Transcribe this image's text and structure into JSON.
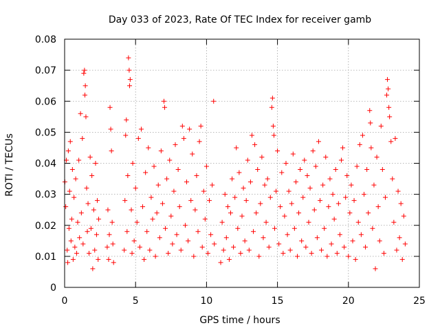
{
  "chart_data": {
    "type": "scatter",
    "title": "Day 033 of 2023, Rate Of TEC Index for receiver gamb",
    "xlabel": "GPS time / hours",
    "ylabel": "ROTI / TECUs",
    "xlim": [
      0,
      25
    ],
    "ylim": [
      0,
      0.08
    ],
    "xticks": [
      0,
      5,
      10,
      15,
      20,
      25
    ],
    "xtick_labels": [
      "0",
      "5",
      "10",
      "15",
      "20",
      "25"
    ],
    "yticks": [
      0,
      0.01,
      0.02,
      0.03,
      0.04,
      0.05,
      0.06,
      0.07,
      0.08
    ],
    "ytick_labels": [
      "0",
      "0.01",
      "0.02",
      "0.03",
      "0.04",
      "0.05",
      "0.06",
      "0.07",
      "0.08"
    ],
    "grid": true,
    "marker": "+",
    "color": "#ff0000",
    "series": [
      {
        "name": "ROTI",
        "points": [
          [
            0.02,
            0.034
          ],
          [
            0.08,
            0.026
          ],
          [
            0.12,
            0.041
          ],
          [
            0.18,
            0.012
          ],
          [
            0.22,
            0.008
          ],
          [
            0.26,
            0.044
          ],
          [
            0.31,
            0.019
          ],
          [
            0.35,
            0.031
          ],
          [
            0.4,
            0.047
          ],
          [
            0.45,
            0.015
          ],
          [
            0.5,
            0.022
          ],
          [
            0.55,
            0.038
          ],
          [
            0.6,
            0.009
          ],
          [
            0.66,
            0.029
          ],
          [
            0.72,
            0.013
          ],
          [
            0.78,
            0.035
          ],
          [
            0.85,
            0.011
          ],
          [
            0.92,
            0.021
          ],
          [
            1.0,
            0.041
          ],
          [
            1.05,
            0.016
          ],
          [
            1.12,
            0.056
          ],
          [
            1.18,
            0.024
          ],
          [
            1.25,
            0.048
          ],
          [
            1.3,
            0.014
          ],
          [
            1.35,
            0.069
          ],
          [
            1.4,
            0.07
          ],
          [
            1.43,
            0.062
          ],
          [
            1.46,
            0.065
          ],
          [
            1.5,
            0.055
          ],
          [
            1.55,
            0.032
          ],
          [
            1.6,
            0.018
          ],
          [
            1.65,
            0.027
          ],
          [
            1.72,
            0.011
          ],
          [
            1.8,
            0.042
          ],
          [
            1.86,
            0.019
          ],
          [
            1.92,
            0.036
          ],
          [
            1.98,
            0.006
          ],
          [
            2.05,
            0.025
          ],
          [
            2.12,
            0.012
          ],
          [
            2.18,
            0.04
          ],
          [
            2.25,
            0.017
          ],
          [
            2.3,
            0.028
          ],
          [
            2.36,
            0.009
          ],
          [
            2.4,
            0.022
          ],
          [
            3.0,
            0.013
          ],
          [
            3.05,
            0.025
          ],
          [
            3.1,
            0.009
          ],
          [
            3.15,
            0.017
          ],
          [
            3.2,
            0.058
          ],
          [
            3.25,
            0.051
          ],
          [
            3.3,
            0.044
          ],
          [
            3.35,
            0.021
          ],
          [
            3.4,
            0.014
          ],
          [
            3.45,
            0.008
          ],
          [
            4.2,
            0.012
          ],
          [
            4.25,
            0.028
          ],
          [
            4.3,
            0.049
          ],
          [
            4.35,
            0.054
          ],
          [
            4.4,
            0.018
          ],
          [
            4.45,
            0.036
          ],
          [
            4.5,
            0.074
          ],
          [
            4.55,
            0.07
          ],
          [
            4.58,
            0.065
          ],
          [
            4.62,
            0.067
          ],
          [
            4.7,
            0.025
          ],
          [
            4.75,
            0.011
          ],
          [
            4.8,
            0.04
          ],
          [
            4.9,
            0.015
          ],
          [
            5.0,
            0.032
          ],
          [
            5.1,
            0.021
          ],
          [
            5.2,
            0.048
          ],
          [
            5.3,
            0.013
          ],
          [
            5.4,
            0.051
          ],
          [
            5.5,
            0.026
          ],
          [
            5.6,
            0.009
          ],
          [
            5.7,
            0.037
          ],
          [
            5.8,
            0.018
          ],
          [
            5.9,
            0.045
          ],
          [
            6.0,
            0.012
          ],
          [
            6.1,
            0.029
          ],
          [
            6.2,
            0.022
          ],
          [
            6.3,
            0.039
          ],
          [
            6.4,
            0.01
          ],
          [
            6.5,
            0.024
          ],
          [
            6.6,
            0.033
          ],
          [
            6.7,
            0.016
          ],
          [
            6.8,
            0.044
          ],
          [
            6.9,
            0.027
          ],
          [
            7.0,
            0.06
          ],
          [
            7.05,
            0.058
          ],
          [
            7.1,
            0.019
          ],
          [
            7.2,
            0.035
          ],
          [
            7.3,
            0.011
          ],
          [
            7.4,
            0.041
          ],
          [
            7.5,
            0.023
          ],
          [
            7.6,
            0.014
          ],
          [
            7.7,
            0.031
          ],
          [
            7.8,
            0.046
          ],
          [
            7.9,
            0.017
          ],
          [
            8.0,
            0.038
          ],
          [
            8.1,
            0.026
          ],
          [
            8.2,
            0.012
          ],
          [
            8.3,
            0.052
          ],
          [
            8.4,
            0.048
          ],
          [
            8.5,
            0.02
          ],
          [
            8.6,
            0.034
          ],
          [
            8.7,
            0.015
          ],
          [
            8.8,
            0.051
          ],
          [
            8.9,
            0.028
          ],
          [
            9.0,
            0.043
          ],
          [
            9.1,
            0.01
          ],
          [
            9.2,
            0.025
          ],
          [
            9.3,
            0.036
          ],
          [
            9.4,
            0.018
          ],
          [
            9.5,
            0.047
          ],
          [
            9.6,
            0.052
          ],
          [
            9.7,
            0.013
          ],
          [
            9.8,
            0.031
          ],
          [
            9.9,
            0.022
          ],
          [
            10.0,
            0.039
          ],
          [
            10.1,
            0.011
          ],
          [
            10.2,
            0.028
          ],
          [
            10.3,
            0.017
          ],
          [
            10.4,
            0.033
          ],
          [
            10.5,
            0.06
          ],
          [
            10.55,
            0.014
          ],
          [
            11.0,
            0.008
          ],
          [
            11.1,
            0.021
          ],
          [
            11.2,
            0.012
          ],
          [
            11.3,
            0.03
          ],
          [
            11.4,
            0.016
          ],
          [
            11.5,
            0.026
          ],
          [
            11.6,
            0.009
          ],
          [
            11.7,
            0.024
          ],
          [
            11.8,
            0.035
          ],
          [
            11.9,
            0.013
          ],
          [
            12.0,
            0.029
          ],
          [
            12.1,
            0.045
          ],
          [
            12.2,
            0.019
          ],
          [
            12.3,
            0.037
          ],
          [
            12.4,
            0.011
          ],
          [
            12.5,
            0.023
          ],
          [
            12.6,
            0.032
          ],
          [
            12.7,
            0.015
          ],
          [
            12.8,
            0.028
          ],
          [
            12.9,
            0.041
          ],
          [
            13.0,
            0.012
          ],
          [
            13.1,
            0.034
          ],
          [
            13.2,
            0.049
          ],
          [
            13.3,
            0.018
          ],
          [
            13.4,
            0.046
          ],
          [
            13.5,
            0.024
          ],
          [
            13.6,
            0.038
          ],
          [
            13.7,
            0.01
          ],
          [
            13.8,
            0.027
          ],
          [
            13.9,
            0.042
          ],
          [
            14.0,
            0.016
          ],
          [
            14.1,
            0.033
          ],
          [
            14.2,
            0.021
          ],
          [
            14.3,
            0.035
          ],
          [
            14.4,
            0.013
          ],
          [
            14.5,
            0.029
          ],
          [
            14.6,
            0.058
          ],
          [
            14.65,
            0.061
          ],
          [
            14.7,
            0.052
          ],
          [
            14.75,
            0.049
          ],
          [
            14.8,
            0.019
          ],
          [
            14.9,
            0.031
          ],
          [
            15.0,
            0.044
          ],
          [
            15.1,
            0.014
          ],
          [
            15.2,
            0.026
          ],
          [
            15.3,
            0.037
          ],
          [
            15.4,
            0.011
          ],
          [
            15.5,
            0.023
          ],
          [
            15.6,
            0.04
          ],
          [
            15.7,
            0.017
          ],
          [
            15.8,
            0.031
          ],
          [
            15.9,
            0.012
          ],
          [
            16.0,
            0.027
          ],
          [
            16.1,
            0.043
          ],
          [
            16.2,
            0.019
          ],
          [
            16.3,
            0.034
          ],
          [
            16.4,
            0.01
          ],
          [
            16.5,
            0.024
          ],
          [
            16.6,
            0.038
          ],
          [
            16.7,
            0.015
          ],
          [
            16.8,
            0.029
          ],
          [
            16.9,
            0.041
          ],
          [
            17.0,
            0.013
          ],
          [
            17.1,
            0.036
          ],
          [
            17.2,
            0.021
          ],
          [
            17.3,
            0.032
          ],
          [
            17.4,
            0.011
          ],
          [
            17.5,
            0.044
          ],
          [
            17.6,
            0.025
          ],
          [
            17.7,
            0.039
          ],
          [
            17.8,
            0.016
          ],
          [
            17.9,
            0.047
          ],
          [
            18.0,
            0.028
          ],
          [
            18.1,
            0.012
          ],
          [
            18.2,
            0.033
          ],
          [
            18.3,
            0.019
          ],
          [
            18.4,
            0.042
          ],
          [
            18.5,
            0.01
          ],
          [
            18.6,
            0.026
          ],
          [
            18.7,
            0.035
          ],
          [
            18.8,
            0.014
          ],
          [
            18.9,
            0.03
          ],
          [
            19.0,
            0.022
          ],
          [
            19.1,
            0.038
          ],
          [
            19.2,
            0.011
          ],
          [
            19.3,
            0.027
          ],
          [
            19.4,
            0.017
          ],
          [
            19.5,
            0.041
          ],
          [
            19.6,
            0.045
          ],
          [
            19.7,
            0.013
          ],
          [
            19.8,
            0.029
          ],
          [
            19.9,
            0.036
          ],
          [
            20.0,
            0.01
          ],
          [
            20.1,
            0.024
          ],
          [
            20.2,
            0.033
          ],
          [
            20.3,
            0.015
          ],
          [
            20.4,
            0.028
          ],
          [
            20.5,
            0.009
          ],
          [
            20.6,
            0.039
          ],
          [
            20.7,
            0.021
          ],
          [
            20.8,
            0.046
          ],
          [
            20.9,
            0.017
          ],
          [
            21.0,
            0.049
          ],
          [
            21.1,
            0.03
          ],
          [
            21.2,
            0.013
          ],
          [
            21.3,
            0.038
          ],
          [
            21.4,
            0.024
          ],
          [
            21.5,
            0.057
          ],
          [
            21.55,
            0.053
          ],
          [
            21.6,
            0.045
          ],
          [
            21.7,
            0.019
          ],
          [
            21.8,
            0.033
          ],
          [
            21.9,
            0.006
          ],
          [
            22.0,
            0.042
          ],
          [
            22.1,
            0.026
          ],
          [
            22.2,
            0.015
          ],
          [
            22.3,
            0.052
          ],
          [
            22.4,
            0.038
          ],
          [
            22.5,
            0.011
          ],
          [
            22.6,
            0.029
          ],
          [
            22.7,
            0.062
          ],
          [
            22.75,
            0.067
          ],
          [
            22.8,
            0.064
          ],
          [
            22.85,
            0.058
          ],
          [
            22.9,
            0.055
          ],
          [
            23.0,
            0.047
          ],
          [
            23.1,
            0.035
          ],
          [
            23.2,
            0.021
          ],
          [
            23.3,
            0.048
          ],
          [
            23.4,
            0.012
          ],
          [
            23.5,
            0.031
          ],
          [
            23.6,
            0.016
          ],
          [
            23.7,
            0.027
          ],
          [
            23.8,
            0.009
          ],
          [
            23.9,
            0.023
          ],
          [
            24.0,
            0.014
          ]
        ]
      }
    ]
  }
}
